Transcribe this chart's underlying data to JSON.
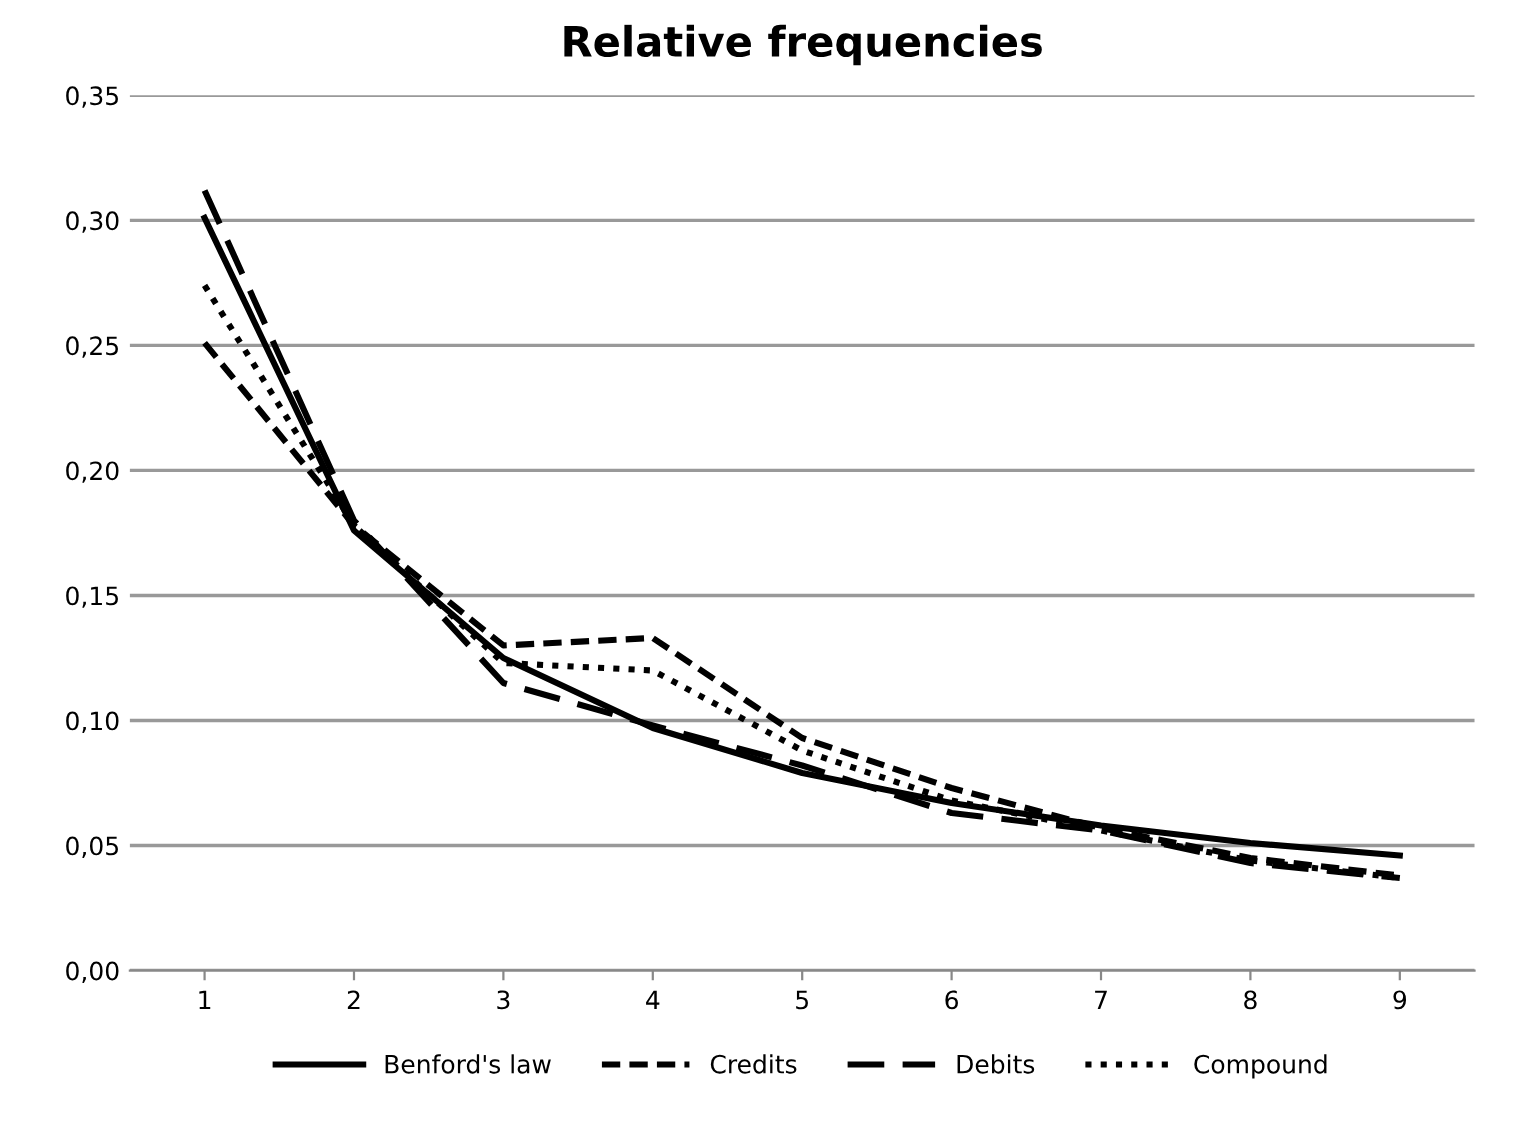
{
  "chart_data": {
    "type": "line",
    "title": "Relative frequencies",
    "categories": [
      "1",
      "2",
      "3",
      "4",
      "5",
      "6",
      "7",
      "8",
      "9"
    ],
    "series": [
      {
        "name": "Benford's law",
        "color": "#000000",
        "line_style": "solid",
        "values": [
          0.301,
          0.176,
          0.125,
          0.097,
          0.079,
          0.067,
          0.058,
          0.051,
          0.046
        ]
      },
      {
        "name": "Credits",
        "color": "#000000",
        "line_style": "dashed",
        "values": [
          0.251,
          0.178,
          0.13,
          0.133,
          0.093,
          0.073,
          0.057,
          0.045,
          0.038
        ]
      },
      {
        "name": "Debits",
        "color": "#000000",
        "line_style": "dashed",
        "values": [
          0.312,
          0.18,
          0.115,
          0.098,
          0.082,
          0.063,
          0.056,
          0.043,
          0.037
        ]
      },
      {
        "name": "Compound",
        "color": "#000000",
        "line_style": "dotted",
        "values": [
          0.274,
          0.178,
          0.123,
          0.12,
          0.088,
          0.068,
          0.056,
          0.044,
          0.037
        ]
      }
    ],
    "ylim": [
      0,
      0.35
    ],
    "yticks": [
      {
        "value": 0,
        "label": "0,00"
      },
      {
        "value": 0.05,
        "label": "0,05"
      },
      {
        "value": 0.1,
        "label": "0,10"
      },
      {
        "value": 0.15,
        "label": "0,15"
      },
      {
        "value": 0.2,
        "label": "0,20"
      },
      {
        "value": 0.25,
        "label": "0,25"
      },
      {
        "value": 0.3,
        "label": "0,30"
      },
      {
        "value": 0.35,
        "label": "0,35"
      }
    ],
    "grid": "y",
    "legend": "bottom",
    "marker": "none"
  }
}
